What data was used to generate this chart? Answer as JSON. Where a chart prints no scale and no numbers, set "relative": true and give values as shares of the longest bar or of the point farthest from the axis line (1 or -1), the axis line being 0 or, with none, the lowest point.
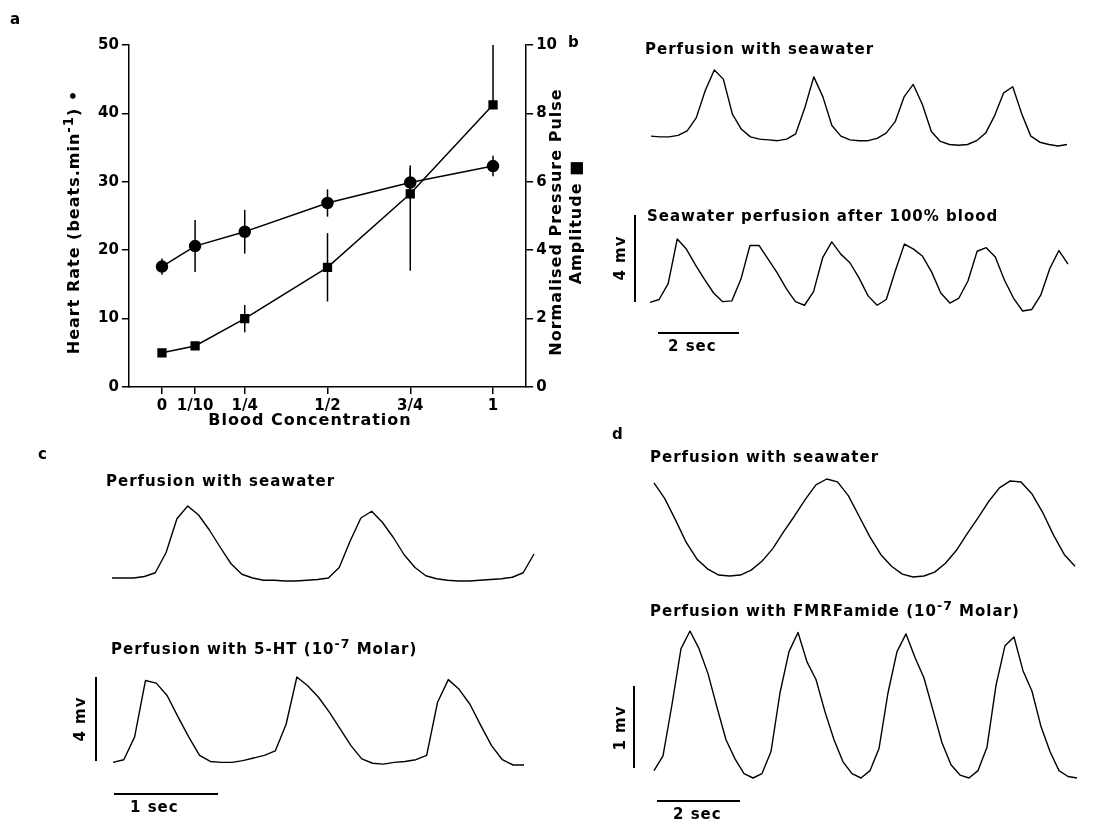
{
  "chart_data": [
    {
      "type": "line",
      "xlabel": "Blood Concentration",
      "ylabel": "Heart Rate (beats.min$^{-1}$) •",
      "y2label": "Normalised Pressure Pulse Amplitude ■",
      "annotations": [
        "a"
      ],
      "x": [
        0,
        0.1,
        0.25,
        0.5,
        0.75,
        1
      ],
      "xlim": [
        -0.1,
        1.1
      ],
      "xticks": [
        0,
        {
          "value": 0.1,
          "label": "1/10"
        },
        {
          "value": 0.25,
          "label": "1/4"
        },
        {
          "value": 0.5,
          "label": "1/2"
        },
        {
          "value": 0.75,
          "label": "3/4"
        },
        1
      ],
      "ylim": [
        0,
        50
      ],
      "yticks": [
        0,
        10,
        20,
        30,
        40,
        50
      ],
      "y2lim": [
        0,
        10
      ],
      "y2ticks": [
        0,
        2,
        4,
        6,
        8,
        10
      ],
      "series": [
        {
          "color": "#000000",
          "marker": "circle",
          "values": [
            17.6,
            20.6,
            22.7,
            26.9,
            29.9,
            32.3
          ],
          "errors": [
            1.2,
            3.8,
            3.2,
            2,
            2.5,
            1.5
          ]
        },
        {
          "color": "#000000",
          "marker": "square",
          "axis": "y2",
          "values": [
            1.0,
            1.2,
            2.0,
            3.5,
            5.65,
            8.25
          ],
          "errors": [
            null,
            null,
            0.4,
            1,
            [
              3.4,
              6.4
            ],
            [
              8.25,
              10
            ]
          ]
        }
      ]
    },
    {
      "type": "line",
      "title": "Perfusion with seawater",
      "relative": true,
      "color": "#000000",
      "annotations": [
        "b"
      ],
      "categories": [
        null,
        null,
        null,
        null,
        null,
        null,
        null,
        null,
        null,
        null,
        null,
        null,
        null,
        null,
        null,
        null,
        null,
        null,
        null,
        null,
        null,
        null,
        null,
        null,
        null,
        null,
        null,
        null,
        null,
        null,
        null,
        null,
        null,
        null,
        null,
        null,
        null,
        null,
        null,
        null,
        null,
        null,
        null,
        null,
        null,
        null,
        null
      ],
      "values": [
        0.13,
        0.12,
        0.12,
        0.14,
        0.2,
        0.37,
        0.73,
        1,
        0.88,
        0.42,
        0.22,
        0.12,
        0.09,
        0.08,
        0.07,
        0.09,
        0.16,
        0.5,
        0.91,
        0.65,
        0.27,
        0.13,
        0.08,
        0.07,
        0.07,
        0.1,
        0.17,
        0.32,
        0.65,
        0.81,
        0.55,
        0.19,
        0.06,
        0.02,
        0.01,
        0.02,
        0.07,
        0.17,
        0.4,
        0.7,
        0.78,
        0.42,
        0.13,
        0.05,
        0.02,
        0,
        0.02
      ]
    },
    {
      "type": "line",
      "title": "Seawater perfusion after 100% blood",
      "relative": true,
      "color": "#000000",
      "annotations": [
        "4 mv",
        "2 sec"
      ],
      "categories": [
        null,
        null,
        null,
        null,
        null,
        null,
        null,
        null,
        null,
        null,
        null,
        null,
        null,
        null,
        null,
        null,
        null,
        null,
        null,
        null,
        null,
        null,
        null,
        null,
        null,
        null,
        null,
        null,
        null,
        null,
        null,
        null,
        null,
        null,
        null,
        null,
        null,
        null,
        null,
        null,
        null,
        null,
        null,
        null,
        null,
        null,
        null
      ],
      "values": [
        0.12,
        0.16,
        0.38,
        1,
        0.86,
        0.64,
        0.44,
        0.25,
        0.13,
        0.14,
        0.44,
        0.91,
        0.91,
        0.72,
        0.53,
        0.31,
        0.13,
        0.08,
        0.27,
        0.74,
        0.96,
        0.79,
        0.67,
        0.46,
        0.21,
        0.08,
        0.16,
        0.56,
        0.93,
        0.86,
        0.76,
        0.54,
        0.25,
        0.11,
        0.18,
        0.42,
        0.83,
        0.88,
        0.75,
        0.43,
        0.18,
        0,
        0.02,
        0.22,
        0.59,
        0.84,
        0.65
      ]
    },
    {
      "type": "line",
      "title": "Perfusion with seawater",
      "relative": true,
      "color": "#000000",
      "annotations": [
        "c"
      ],
      "categories": [
        null,
        null,
        null,
        null,
        null,
        null,
        null,
        null,
        null,
        null,
        null,
        null,
        null,
        null,
        null,
        null,
        null,
        null,
        null,
        null,
        null,
        null,
        null,
        null,
        null,
        null,
        null,
        null,
        null,
        null,
        null,
        null,
        null,
        null,
        null,
        null,
        null,
        null,
        null,
        null
      ],
      "values": [
        0.04,
        0.04,
        0.04,
        0.06,
        0.11,
        0.38,
        0.83,
        1,
        0.88,
        0.68,
        0.45,
        0.23,
        0.09,
        0.04,
        0.01,
        0.01,
        0,
        0,
        0.01,
        0.02,
        0.04,
        0.18,
        0.53,
        0.84,
        0.93,
        0.78,
        0.58,
        0.35,
        0.18,
        0.07,
        0.03,
        0.01,
        0,
        0,
        0.01,
        0.02,
        0.03,
        0.05,
        0.11,
        0.36
      ]
    },
    {
      "type": "line",
      "title": "Perfusion with 5-HT (10$^{-7}$ Molar)",
      "relative": true,
      "color": "#000000",
      "annotations": [
        "4 mv",
        "1 sec"
      ],
      "categories": [
        null,
        null,
        null,
        null,
        null,
        null,
        null,
        null,
        null,
        null,
        null,
        null,
        null,
        null,
        null,
        null,
        null,
        null,
        null,
        null,
        null,
        null,
        null,
        null,
        null,
        null,
        null,
        null,
        null,
        null,
        null,
        null,
        null,
        null,
        null,
        null,
        null,
        null,
        null
      ],
      "values": [
        0.03,
        0.06,
        0.32,
        0.96,
        0.93,
        0.79,
        0.55,
        0.32,
        0.11,
        0.04,
        0.03,
        0.03,
        0.05,
        0.08,
        0.11,
        0.16,
        0.46,
        1,
        0.9,
        0.77,
        0.6,
        0.41,
        0.22,
        0.07,
        0.02,
        0.01,
        0.03,
        0.04,
        0.06,
        0.11,
        0.71,
        0.97,
        0.86,
        0.69,
        0.45,
        0.22,
        0.06,
        0,
        0
      ]
    },
    {
      "type": "line",
      "title": "Perfusion with seawater",
      "relative": true,
      "color": "#000000",
      "annotations": [
        "d"
      ],
      "categories": [
        null,
        null,
        null,
        null,
        null,
        null,
        null,
        null,
        null,
        null,
        null,
        null,
        null,
        null,
        null,
        null,
        null,
        null,
        null,
        null,
        null,
        null,
        null,
        null,
        null,
        null,
        null,
        null,
        null,
        null,
        null,
        null,
        null,
        null,
        null,
        null,
        null,
        null,
        null,
        null
      ],
      "values": [
        0.96,
        0.8,
        0.58,
        0.35,
        0.18,
        0.08,
        0.02,
        0.01,
        0.02,
        0.07,
        0.16,
        0.29,
        0.46,
        0.62,
        0.79,
        0.94,
        1,
        0.97,
        0.83,
        0.62,
        0.41,
        0.23,
        0.11,
        0.03,
        0,
        0.01,
        0.05,
        0.14,
        0.27,
        0.44,
        0.6,
        0.77,
        0.91,
        0.98,
        0.97,
        0.85,
        0.66,
        0.43,
        0.23,
        0.11
      ]
    },
    {
      "type": "line",
      "title": "Perfusion with FMRFamide (10$^{-7}$ Molar)",
      "relative": true,
      "color": "#000000",
      "annotations": [
        "1 mv",
        "2 sec"
      ],
      "categories": [
        null,
        null,
        null,
        null,
        null,
        null,
        null,
        null,
        null,
        null,
        null,
        null,
        null,
        null,
        null,
        null,
        null,
        null,
        null,
        null,
        null,
        null,
        null,
        null,
        null,
        null,
        null,
        null,
        null,
        null,
        null,
        null,
        null,
        null,
        null,
        null,
        null,
        null,
        null,
        null,
        null,
        null,
        null,
        null,
        null,
        null,
        null,
        null
      ],
      "values": [
        0.05,
        0.15,
        0.5,
        0.88,
        1,
        0.88,
        0.71,
        0.48,
        0.26,
        0.13,
        0.03,
        0,
        0.03,
        0.18,
        0.58,
        0.86,
        0.99,
        0.79,
        0.67,
        0.45,
        0.26,
        0.11,
        0.03,
        0,
        0.05,
        0.2,
        0.58,
        0.86,
        0.98,
        0.82,
        0.68,
        0.46,
        0.24,
        0.09,
        0.02,
        0,
        0.05,
        0.21,
        0.63,
        0.9,
        0.96,
        0.73,
        0.59,
        0.35,
        0.18,
        0.05,
        0.01,
        0
      ]
    }
  ]
}
